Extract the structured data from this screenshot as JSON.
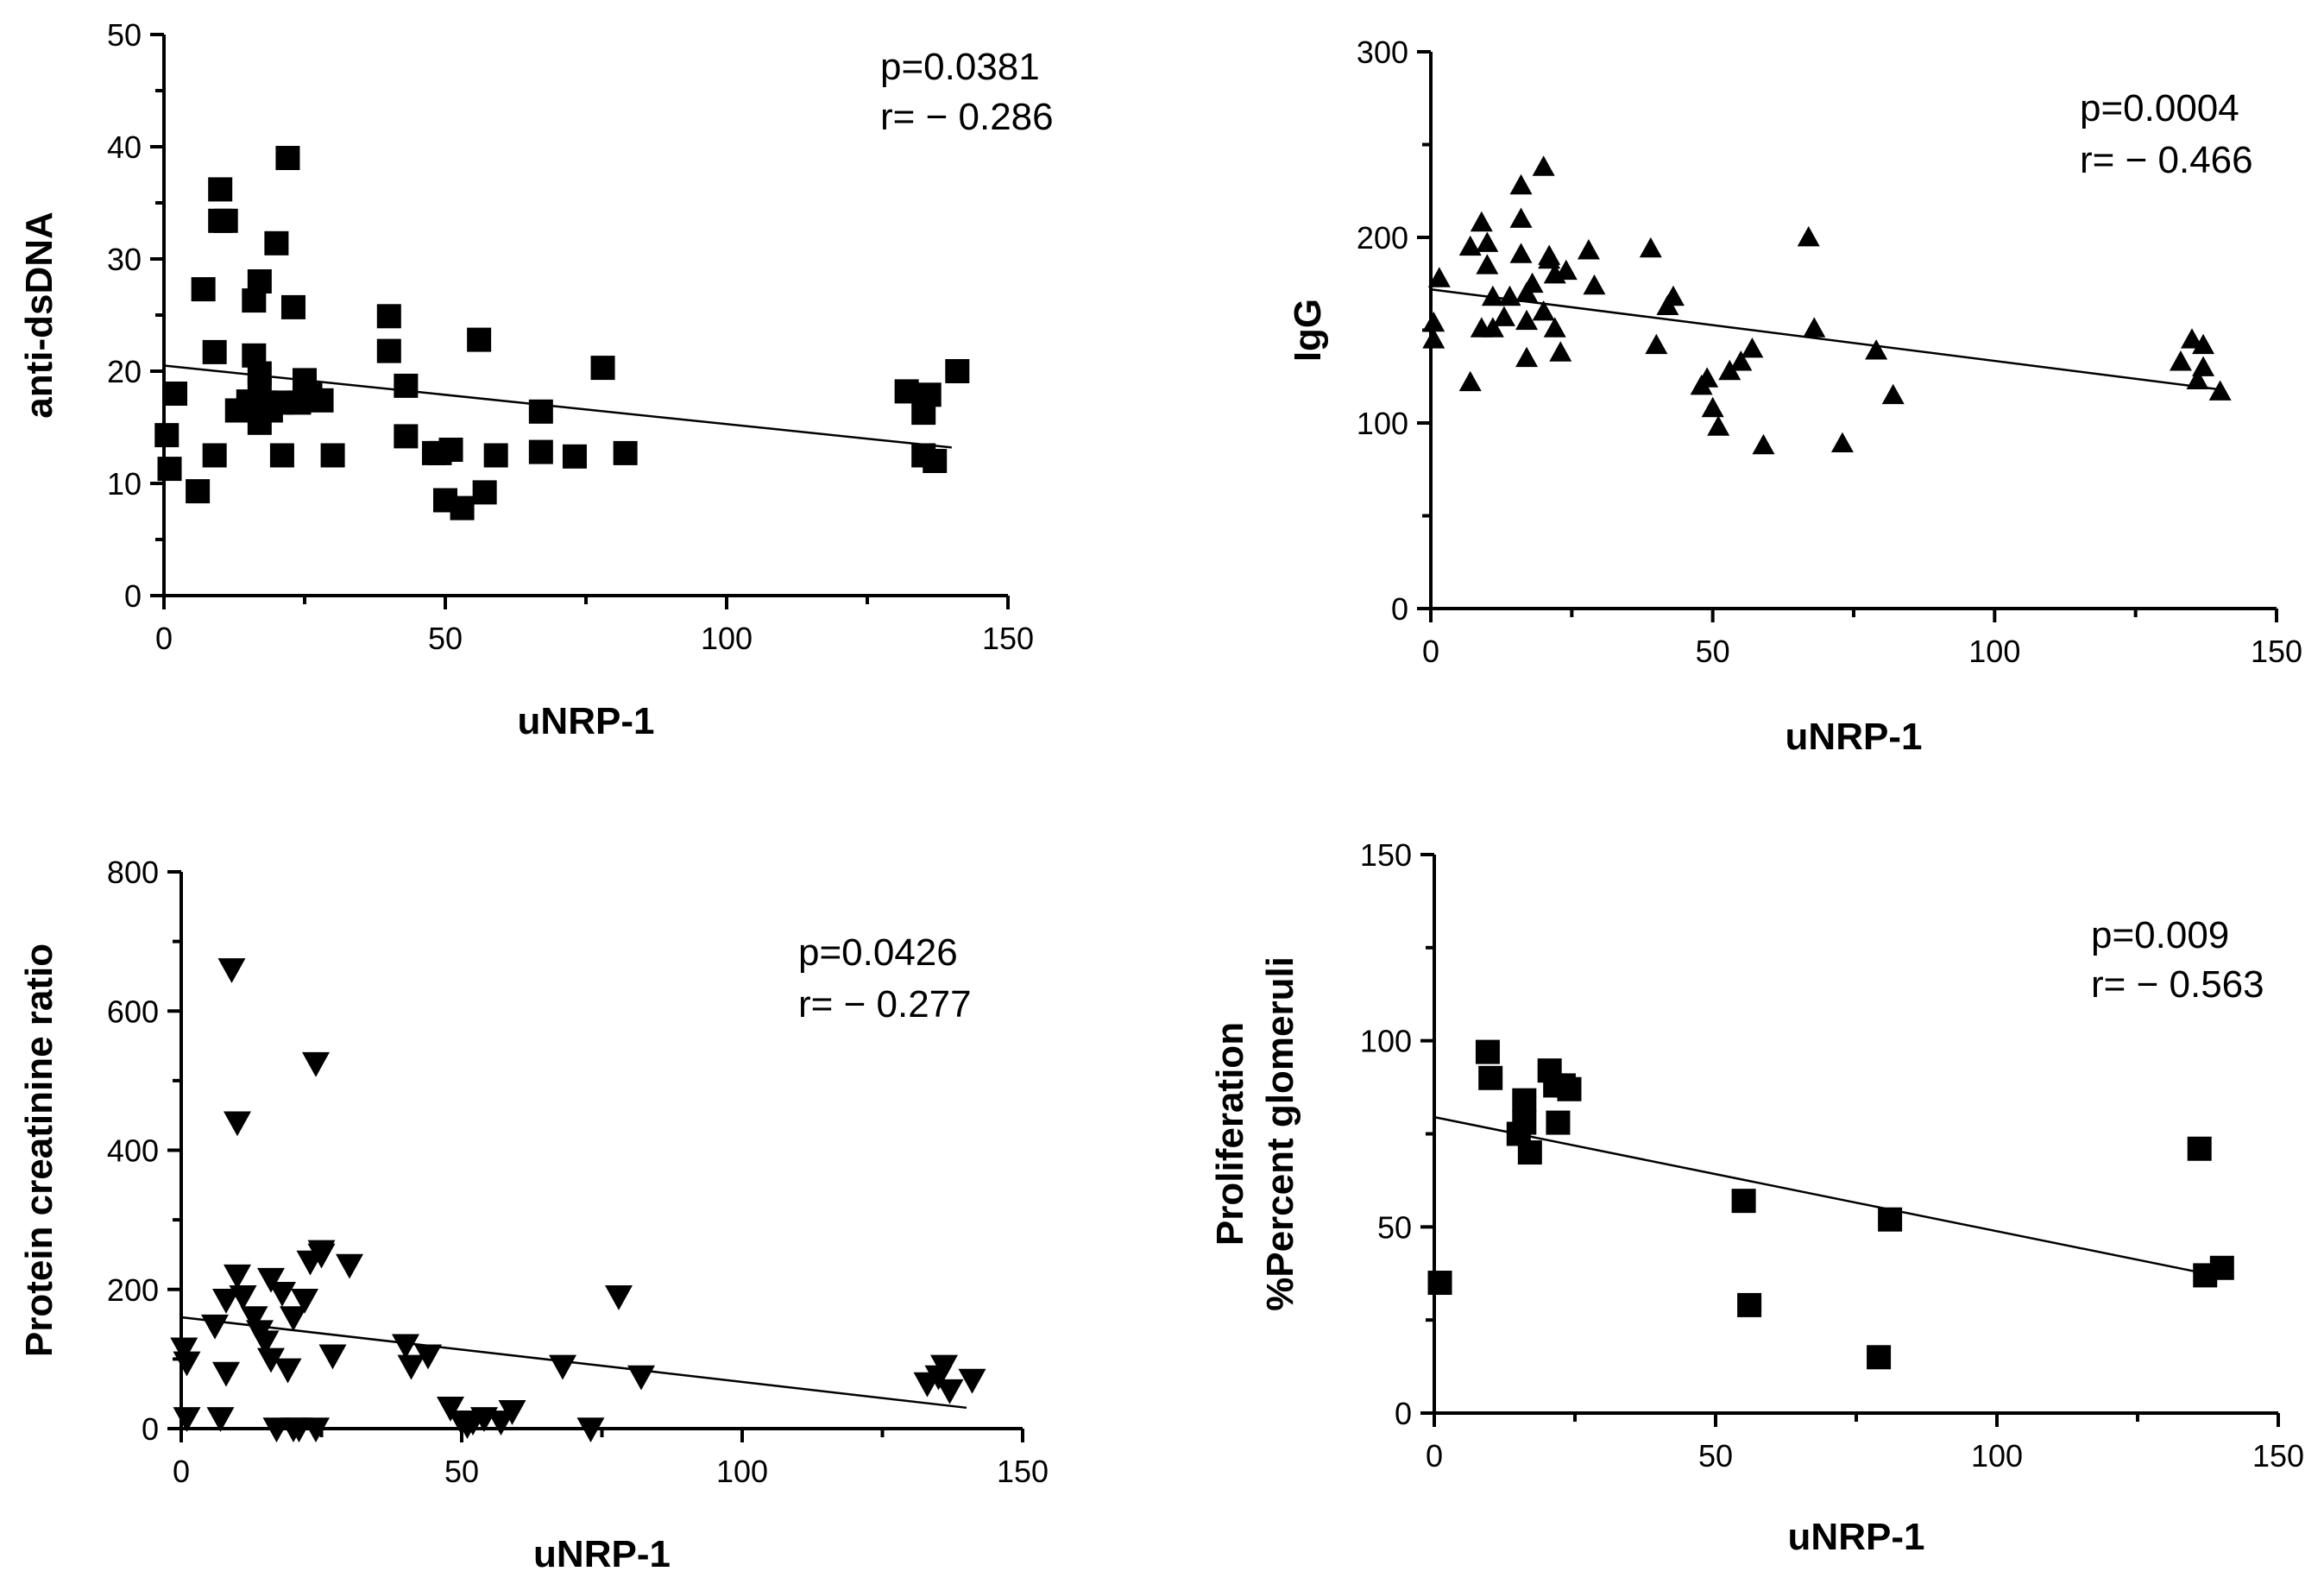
{
  "chart_data": [
    {
      "type": "scatter",
      "marker": "square",
      "xlabel": "uNRP-1",
      "ylabel": [
        "anti-dsDNA"
      ],
      "xlim": [
        0,
        150
      ],
      "ylim": [
        0,
        50
      ],
      "xticks": [
        0,
        50,
        100,
        150
      ],
      "yticks": [
        0,
        10,
        20,
        30,
        40,
        50
      ],
      "annotation": [
        "p=0.0381",
        "r= − 0.286"
      ],
      "fit_line": {
        "x": [
          0,
          140
        ],
        "y": [
          20.5,
          13.2
        ]
      },
      "x": [
        0.5,
        1,
        2,
        6,
        7,
        9,
        9,
        10,
        10,
        11,
        13,
        15,
        16,
        16,
        17,
        17,
        17,
        17,
        18,
        18,
        19,
        20,
        21,
        21,
        22,
        23,
        24,
        25,
        26,
        28,
        30,
        40,
        40,
        43,
        43,
        48,
        49,
        50,
        51,
        53,
        56,
        57,
        59,
        67,
        67,
        73,
        78,
        82,
        132,
        135,
        135,
        136,
        137,
        141
      ],
      "y": [
        14.3,
        11.3,
        18,
        9.3,
        27.3,
        21.7,
        12.5,
        36.2,
        33.4,
        33.4,
        16.5,
        17.3,
        21.4,
        26.3,
        28,
        19.8,
        18.4,
        15.4,
        17.2,
        17.2,
        16.5,
        31.4,
        12.5,
        17.2,
        39,
        25.7,
        17.2,
        19.2,
        17.9,
        17.4,
        12.5,
        24.9,
        21.8,
        18.7,
        14.2,
        12.7,
        12.7,
        8.5,
        13,
        7.8,
        22.8,
        9.2,
        12.5,
        16.4,
        12.8,
        12.4,
        20.3,
        12.7,
        18.2,
        16.3,
        12.5,
        17.9,
        12,
        20
      ]
    },
    {
      "type": "scatter",
      "marker": "triangle-up",
      "xlabel": "uNRP-1",
      "ylabel": [
        "IgG"
      ],
      "xlim": [
        0,
        150
      ],
      "ylim": [
        0,
        300
      ],
      "xticks": [
        0,
        50,
        100,
        150
      ],
      "yticks": [
        0,
        100,
        200,
        300
      ],
      "annotation": [
        "p=0.0004",
        "r= − 0.466"
      ],
      "fit_line": {
        "x": [
          0,
          140
        ],
        "y": [
          172,
          118
        ]
      },
      "x": [
        0.5,
        0.5,
        1.5,
        7,
        7,
        9,
        9,
        10,
        10,
        11,
        11,
        13,
        14,
        16,
        16,
        16,
        17,
        17,
        17,
        18,
        20,
        20,
        21,
        21,
        22,
        22,
        23,
        24,
        28,
        29,
        39,
        40,
        42,
        43,
        48,
        49,
        50,
        51,
        53,
        55,
        57,
        59,
        67,
        68,
        73,
        79,
        82,
        133,
        135,
        136,
        137,
        137,
        140
      ],
      "y": [
        154,
        145,
        178,
        122,
        195,
        208,
        151,
        197,
        185,
        168,
        151,
        157,
        168,
        210,
        228,
        191,
        135,
        155,
        170,
        175,
        238,
        160,
        190,
        188,
        180,
        151,
        138,
        182,
        193,
        174,
        194,
        142,
        163,
        168,
        120,
        124,
        108,
        98,
        128,
        133,
        140,
        88,
        200,
        151,
        89,
        139,
        115,
        133,
        145,
        123,
        130,
        142,
        117
      ]
    },
    {
      "type": "scatter",
      "marker": "triangle-down",
      "xlabel": "uNRP-1",
      "ylabel": [
        "Protein creatinine ratio"
      ],
      "xlim": [
        0,
        150
      ],
      "ylim": [
        0,
        800
      ],
      "xticks": [
        0,
        50,
        100,
        150
      ],
      "yticks": [
        0,
        200,
        400,
        600,
        800
      ],
      "annotation": [
        "p=0.0426",
        "r= − 0.277"
      ],
      "fit_line": {
        "x": [
          0,
          140
        ],
        "y": [
          160,
          30
        ]
      },
      "x": [
        0.5,
        1,
        1,
        6,
        7,
        8,
        8,
        9,
        10,
        10,
        11,
        13,
        14,
        15,
        16,
        16,
        17,
        18,
        19,
        20,
        20,
        21,
        22,
        23,
        24,
        24,
        25,
        25,
        27,
        30,
        40,
        41,
        44,
        48,
        50,
        51,
        52,
        54,
        57,
        59,
        68,
        73,
        78,
        82,
        133,
        135,
        136,
        137,
        141
      ],
      "y": [
        115,
        95,
        15,
        148,
        15,
        80,
        185,
        660,
        220,
        440,
        190,
        160,
        140,
        125,
        100,
        215,
        0,
        195,
        85,
        0,
        160,
        0,
        185,
        240,
        0,
        525,
        250,
        255,
        105,
        235,
        120,
        90,
        105,
        30,
        10,
        5,
        10,
        15,
        10,
        25,
        90,
        0,
        190,
        75,
        65,
        75,
        90,
        55,
        70
      ]
    },
    {
      "type": "scatter",
      "marker": "square",
      "xlabel": "uNRP-1",
      "ylabel": [
        "Proliferation",
        "%Percent glomeruli"
      ],
      "xlim": [
        0,
        150
      ],
      "ylim": [
        0,
        150
      ],
      "xticks": [
        0,
        50,
        100,
        150
      ],
      "yticks": [
        0,
        50,
        100,
        150
      ],
      "annotation": [
        "p=0.009",
        "r= − 0.563"
      ],
      "fit_line": {
        "x": [
          0,
          137
        ],
        "y": [
          79.5,
          37.5
        ]
      },
      "x": [
        1,
        9.5,
        10,
        15,
        16,
        16,
        17,
        20.5,
        21.5,
        22,
        23,
        24,
        55,
        56,
        79,
        81,
        136,
        137,
        140
      ],
      "y": [
        35,
        97,
        90,
        75,
        78,
        84,
        70,
        92,
        88,
        78,
        88,
        87,
        57,
        29,
        15,
        52,
        71,
        37,
        39
      ]
    }
  ]
}
